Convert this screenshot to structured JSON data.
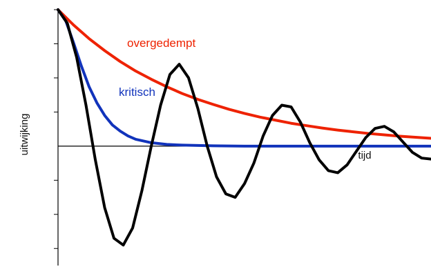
{
  "chart_data": {
    "type": "line",
    "xlabel": "tijd",
    "ylabel": "uitwijking",
    "xlim": [
      0,
      12
    ],
    "ylim": [
      -3.5,
      4
    ],
    "grid": false,
    "series": [
      {
        "name": "overgedempt",
        "color": "#ee2200",
        "x": [
          0,
          0.5,
          1,
          1.5,
          2,
          2.5,
          3,
          3.5,
          4,
          4.5,
          5,
          5.5,
          6,
          6.5,
          7,
          7.5,
          8,
          8.5,
          9,
          9.5,
          10,
          10.5,
          11,
          11.5,
          12
        ],
        "y": [
          4.0,
          3.55,
          3.15,
          2.8,
          2.48,
          2.2,
          1.96,
          1.74,
          1.54,
          1.37,
          1.22,
          1.08,
          0.96,
          0.85,
          0.76,
          0.67,
          0.6,
          0.53,
          0.47,
          0.42,
          0.37,
          0.33,
          0.29,
          0.26,
          0.23
        ]
      },
      {
        "name": "kritisch",
        "color": "#1133bb",
        "x": [
          0,
          0.25,
          0.5,
          0.75,
          1,
          1.25,
          1.5,
          1.75,
          2,
          2.25,
          2.5,
          3,
          3.5,
          4,
          4.5,
          5,
          6,
          7,
          8,
          9,
          10,
          11,
          12
        ],
        "y": [
          4.0,
          3.67,
          3.03,
          2.35,
          1.74,
          1.27,
          0.9,
          0.62,
          0.44,
          0.3,
          0.2,
          0.1,
          0.05,
          0.03,
          0.02,
          0.01,
          0.0,
          0.0,
          0.0,
          0.0,
          0.0,
          0.0,
          0.0
        ]
      },
      {
        "name": "",
        "color": "#000000",
        "x": [
          0,
          0.3,
          0.6,
          0.9,
          1.2,
          1.5,
          1.8,
          2.1,
          2.4,
          2.7,
          3.0,
          3.3,
          3.6,
          3.9,
          4.2,
          4.5,
          4.8,
          5.1,
          5.4,
          5.7,
          6.0,
          6.3,
          6.6,
          6.9,
          7.2,
          7.5,
          7.8,
          8.1,
          8.4,
          8.7,
          9.0,
          9.3,
          9.6,
          9.9,
          10.2,
          10.5,
          10.8,
          11.1,
          11.4,
          11.7,
          12.0
        ],
        "y": [
          4.0,
          3.6,
          2.6,
          1.2,
          -0.4,
          -1.8,
          -2.7,
          -2.9,
          -2.4,
          -1.3,
          0.0,
          1.2,
          2.1,
          2.4,
          2.0,
          1.1,
          0.0,
          -0.9,
          -1.4,
          -1.5,
          -1.1,
          -0.5,
          0.3,
          0.9,
          1.2,
          1.15,
          0.7,
          0.1,
          -0.4,
          -0.72,
          -0.78,
          -0.55,
          -0.15,
          0.25,
          0.52,
          0.58,
          0.42,
          0.12,
          -0.18,
          -0.35,
          -0.38
        ]
      }
    ]
  }
}
